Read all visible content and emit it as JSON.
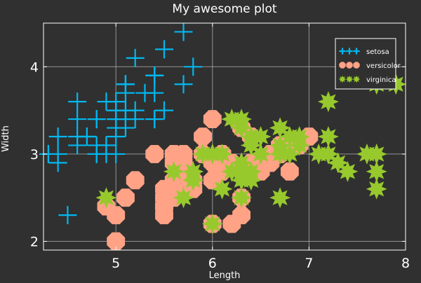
{
  "colors": {
    "background": "#303030",
    "grid": "#bdbdbd",
    "axis": "#ffffff",
    "text": "#ffffff",
    "setosa": "#00b8f0",
    "versicolor": "#ffa286",
    "virginica": "#97c92d",
    "legend_bg": "#303030",
    "legend_border": "#ffffff"
  },
  "chart_data": {
    "type": "scatter",
    "title": "My awesome plot",
    "xlabel": "Length",
    "ylabel": "Width",
    "xlim": [
      4.25,
      8.0
    ],
    "ylim": [
      1.9,
      4.5
    ],
    "xticks": [
      5,
      6,
      7,
      8
    ],
    "xtick_labels": [
      "5",
      "6",
      "7",
      "8"
    ],
    "yticks": [
      2,
      3,
      4
    ],
    "ytick_labels": [
      "2",
      "3",
      "4"
    ],
    "grid": true,
    "legend": "top-right",
    "series": [
      {
        "name": "setosa",
        "marker": "cross",
        "x": [
          5.1,
          4.9,
          4.7,
          4.6,
          5.0,
          5.4,
          4.6,
          5.0,
          4.4,
          4.9,
          5.4,
          4.8,
          4.8,
          4.3,
          5.8,
          5.7,
          5.4,
          5.1,
          5.7,
          5.1,
          5.4,
          5.1,
          4.6,
          5.1,
          4.8,
          5.0,
          5.0,
          5.2,
          5.2,
          4.7,
          4.8,
          5.4,
          5.2,
          5.5,
          4.9,
          5.0,
          5.5,
          4.9,
          4.4,
          5.1,
          5.0,
          4.5,
          4.4,
          5.0,
          5.1,
          4.8,
          5.1,
          4.6,
          5.3,
          5.0
        ],
        "y": [
          3.5,
          3.0,
          3.2,
          3.1,
          3.6,
          3.9,
          3.4,
          3.4,
          2.9,
          3.1,
          3.7,
          3.4,
          3.0,
          3.0,
          4.0,
          4.4,
          3.9,
          3.5,
          3.8,
          3.8,
          3.4,
          3.7,
          3.6,
          3.3,
          3.4,
          3.0,
          3.4,
          3.5,
          3.4,
          3.2,
          3.1,
          3.4,
          4.1,
          4.2,
          3.1,
          3.2,
          3.5,
          3.6,
          3.0,
          3.4,
          3.5,
          2.3,
          3.2,
          3.5,
          3.8,
          3.0,
          3.8,
          3.2,
          3.7,
          3.3
        ]
      },
      {
        "name": "versicolor",
        "marker": "octagon",
        "x": [
          7.0,
          6.4,
          6.9,
          5.5,
          6.5,
          5.7,
          6.3,
          4.9,
          6.6,
          5.2,
          5.0,
          5.9,
          6.0,
          6.1,
          5.6,
          6.7,
          5.6,
          5.8,
          6.2,
          5.6,
          5.9,
          6.1,
          6.3,
          6.1,
          6.4,
          6.6,
          6.8,
          6.7,
          6.0,
          5.7,
          5.5,
          5.5,
          5.8,
          6.0,
          5.4,
          6.0,
          6.7,
          6.3,
          5.6,
          5.5,
          5.5,
          6.1,
          5.8,
          5.0,
          5.6,
          5.7,
          5.7,
          6.2,
          5.1,
          5.7
        ],
        "y": [
          3.2,
          3.2,
          3.1,
          2.3,
          2.8,
          2.8,
          3.3,
          2.4,
          2.9,
          2.7,
          2.0,
          3.0,
          2.2,
          2.9,
          2.9,
          3.1,
          3.0,
          2.7,
          2.2,
          2.5,
          3.2,
          2.8,
          2.5,
          2.8,
          2.9,
          3.0,
          2.8,
          3.0,
          2.9,
          2.6,
          2.4,
          2.4,
          2.7,
          2.7,
          3.0,
          3.4,
          3.1,
          2.3,
          3.0,
          2.5,
          2.6,
          3.0,
          2.6,
          2.3,
          2.7,
          3.0,
          2.9,
          2.9,
          2.5,
          2.8
        ]
      },
      {
        "name": "virginica",
        "marker": "star",
        "x": [
          6.3,
          5.8,
          7.1,
          6.3,
          6.5,
          7.6,
          4.9,
          7.3,
          6.7,
          7.2,
          6.5,
          6.4,
          6.8,
          5.7,
          5.8,
          6.4,
          6.5,
          7.7,
          7.7,
          6.0,
          6.9,
          5.6,
          7.7,
          6.3,
          6.7,
          7.2,
          6.2,
          6.1,
          6.4,
          7.2,
          7.4,
          7.9,
          6.4,
          6.3,
          6.1,
          7.7,
          6.3,
          6.4,
          6.0,
          6.9,
          6.7,
          6.9,
          5.8,
          6.8,
          6.7,
          6.7,
          6.3,
          6.5,
          6.2,
          5.9
        ],
        "y": [
          3.3,
          2.7,
          3.0,
          2.9,
          3.0,
          3.0,
          2.5,
          2.9,
          2.5,
          3.6,
          3.2,
          2.7,
          3.0,
          2.5,
          2.8,
          3.2,
          3.0,
          3.8,
          2.6,
          2.2,
          3.2,
          2.8,
          2.8,
          2.7,
          3.3,
          3.2,
          2.8,
          3.0,
          2.8,
          3.0,
          2.8,
          3.8,
          2.8,
          2.8,
          2.6,
          3.0,
          3.4,
          3.1,
          3.0,
          3.1,
          3.1,
          3.1,
          2.7,
          3.2,
          3.3,
          3.0,
          2.5,
          3.0,
          3.4,
          3.0
        ]
      }
    ]
  }
}
